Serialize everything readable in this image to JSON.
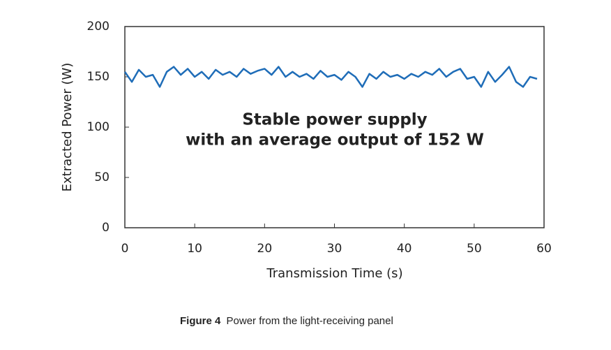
{
  "chart_data": {
    "type": "line",
    "x_label": "Transmission  Time (s)",
    "y_label": "Extracted Power (W)",
    "annotations": [
      "Stable power supply",
      "with an average output of 152 W"
    ],
    "x": [
      0,
      1,
      2,
      3,
      4,
      5,
      6,
      7,
      8,
      9,
      10,
      11,
      12,
      13,
      14,
      15,
      16,
      17,
      18,
      19,
      20,
      21,
      22,
      23,
      24,
      25,
      26,
      27,
      28,
      29,
      30,
      31,
      32,
      33,
      34,
      35,
      36,
      37,
      38,
      39,
      40,
      41,
      42,
      43,
      44,
      45,
      46,
      47,
      48,
      49,
      50,
      51,
      52,
      53,
      54,
      55,
      56,
      57,
      58,
      59
    ],
    "series": [
      {
        "name": "Power",
        "color": "#1f6db8",
        "values": [
          155,
          145,
          157,
          150,
          152,
          140,
          155,
          160,
          152,
          158,
          150,
          155,
          148,
          157,
          152,
          155,
          150,
          158,
          153,
          156,
          158,
          152,
          160,
          150,
          155,
          150,
          153,
          148,
          156,
          150,
          152,
          147,
          155,
          150,
          140,
          153,
          148,
          155,
          150,
          152,
          148,
          153,
          150,
          155,
          152,
          158,
          150,
          155,
          158,
          148,
          150,
          140,
          155,
          145,
          152,
          160,
          145,
          140,
          150,
          148
        ]
      }
    ],
    "xlim": [
      0,
      60
    ],
    "xticks": [
      0,
      10,
      20,
      30,
      40,
      50,
      60
    ],
    "ylim": [
      0,
      200
    ],
    "yticks": [
      0,
      50,
      100,
      150,
      200
    ]
  },
  "caption": {
    "label": "Figure 4",
    "text": "Power from the light-receiving panel"
  }
}
